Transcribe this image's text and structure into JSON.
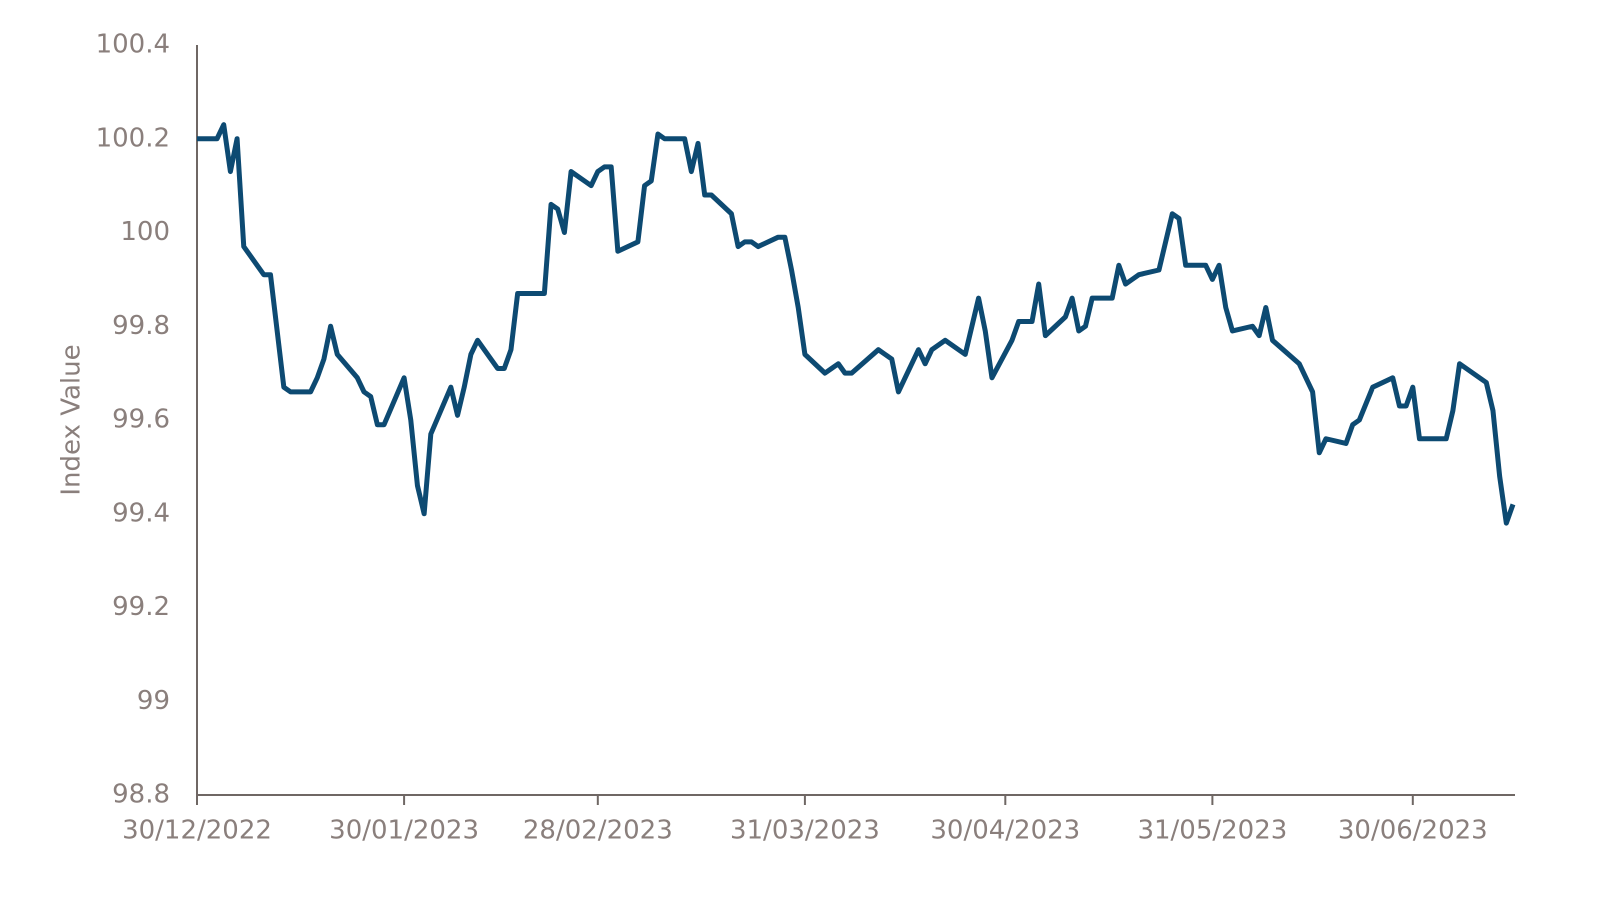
{
  "chart_data": {
    "type": "line",
    "y_label": "Index Value",
    "x": [
      "30/12/2022",
      "02/01/2023",
      "03/01/2023",
      "04/01/2023",
      "05/01/2023",
      "06/01/2023",
      "09/01/2023",
      "10/01/2023",
      "12/01/2023",
      "13/01/2023",
      "16/01/2023",
      "17/01/2023",
      "18/01/2023",
      "19/01/2023",
      "20/01/2023",
      "23/01/2023",
      "24/01/2023",
      "25/01/2023",
      "26/01/2023",
      "27/01/2023",
      "30/01/2023",
      "31/01/2023",
      "01/02/2023",
      "02/02/2023",
      "03/02/2023",
      "06/02/2023",
      "07/02/2023",
      "08/02/2023",
      "09/02/2023",
      "10/02/2023",
      "13/02/2023",
      "14/02/2023",
      "15/02/2023",
      "16/02/2023",
      "17/02/2023",
      "20/02/2023",
      "21/02/2023",
      "22/02/2023",
      "23/02/2023",
      "24/02/2023",
      "27/02/2023",
      "28/02/2023",
      "01/03/2023",
      "02/03/2023",
      "03/03/2023",
      "06/03/2023",
      "07/03/2023",
      "08/03/2023",
      "09/03/2023",
      "10/03/2023",
      "13/03/2023",
      "14/03/2023",
      "15/03/2023",
      "16/03/2023",
      "17/03/2023",
      "20/03/2023",
      "21/03/2023",
      "22/03/2023",
      "23/03/2023",
      "24/03/2023",
      "27/03/2023",
      "28/03/2023",
      "29/03/2023",
      "30/03/2023",
      "31/03/2023",
      "03/04/2023",
      "04/04/2023",
      "05/04/2023",
      "06/04/2023",
      "07/04/2023",
      "11/04/2023",
      "12/04/2023",
      "13/04/2023",
      "14/04/2023",
      "17/04/2023",
      "18/04/2023",
      "19/04/2023",
      "21/04/2023",
      "24/04/2023",
      "25/04/2023",
      "26/04/2023",
      "27/04/2023",
      "28/04/2023",
      "01/05/2023",
      "02/05/2023",
      "03/05/2023",
      "04/05/2023",
      "05/05/2023",
      "06/05/2023",
      "09/05/2023",
      "10/05/2023",
      "11/05/2023",
      "12/05/2023",
      "13/05/2023",
      "16/05/2023",
      "17/05/2023",
      "18/05/2023",
      "19/05/2023",
      "20/05/2023",
      "23/05/2023",
      "25/05/2023",
      "26/05/2023",
      "27/05/2023",
      "30/05/2023",
      "31/05/2023",
      "01/06/2023",
      "02/06/2023",
      "03/06/2023",
      "06/06/2023",
      "07/06/2023",
      "08/06/2023",
      "09/06/2023",
      "13/06/2023",
      "15/06/2023",
      "16/06/2023",
      "17/06/2023",
      "20/06/2023",
      "21/06/2023",
      "22/06/2023",
      "24/06/2023",
      "27/06/2023",
      "28/06/2023",
      "29/06/2023",
      "30/06/2023",
      "01/07/2023",
      "05/07/2023",
      "06/07/2023",
      "07/07/2023",
      "11/07/2023",
      "12/07/2023",
      "13/07/2023",
      "14/07/2023",
      "15/07/2023"
    ],
    "series": [
      {
        "color": "#0d4a72",
        "values": [
          100.2,
          100.2,
          100.23,
          100.13,
          100.2,
          99.97,
          99.91,
          99.91,
          99.67,
          99.66,
          99.66,
          99.69,
          99.73,
          99.8,
          99.74,
          99.69,
          99.66,
          99.65,
          99.59,
          99.59,
          99.69,
          99.6,
          99.46,
          99.4,
          99.57,
          99.67,
          99.61,
          99.67,
          99.74,
          99.77,
          99.71,
          99.71,
          99.75,
          99.87,
          99.87,
          99.87,
          100.06,
          100.05,
          100.0,
          100.13,
          100.1,
          100.13,
          100.14,
          100.14,
          99.96,
          99.98,
          100.1,
          100.11,
          100.21,
          100.2,
          100.2,
          100.13,
          100.19,
          100.08,
          100.08,
          100.04,
          99.97,
          99.98,
          99.98,
          99.97,
          99.99,
          99.99,
          99.92,
          99.84,
          99.74,
          99.7,
          99.71,
          99.72,
          99.7,
          99.7,
          99.75,
          99.74,
          99.73,
          99.66,
          99.75,
          99.72,
          99.75,
          99.77,
          99.74,
          99.8,
          99.86,
          99.79,
          99.69,
          99.77,
          99.81,
          99.81,
          99.81,
          99.89,
          99.78,
          99.82,
          99.86,
          99.79,
          99.8,
          99.86,
          99.86,
          99.93,
          99.89,
          99.9,
          99.91,
          99.92,
          100.04,
          100.03,
          99.93,
          99.93,
          99.9,
          99.93,
          99.84,
          99.79,
          99.8,
          99.78,
          99.84,
          99.77,
          99.72,
          99.66,
          99.53,
          99.56,
          99.55,
          99.59,
          99.6,
          99.67,
          99.69,
          99.63,
          99.63,
          99.67,
          99.56,
          99.56,
          99.62,
          99.72,
          99.68,
          99.62,
          99.48,
          99.38,
          99.42
        ]
      }
    ],
    "xlim": [
      "30/12/2022",
      "15/07/2023"
    ],
    "xticks": [
      "30/12/2022",
      "30/01/2023",
      "28/02/2023",
      "31/03/2023",
      "30/04/2023",
      "31/05/2023",
      "30/06/2023"
    ],
    "ylim": [
      98.8,
      100.4
    ],
    "yticks": [
      98.8,
      99,
      99.2,
      99.4,
      99.6,
      99.8,
      100,
      100.2,
      100.4
    ]
  }
}
